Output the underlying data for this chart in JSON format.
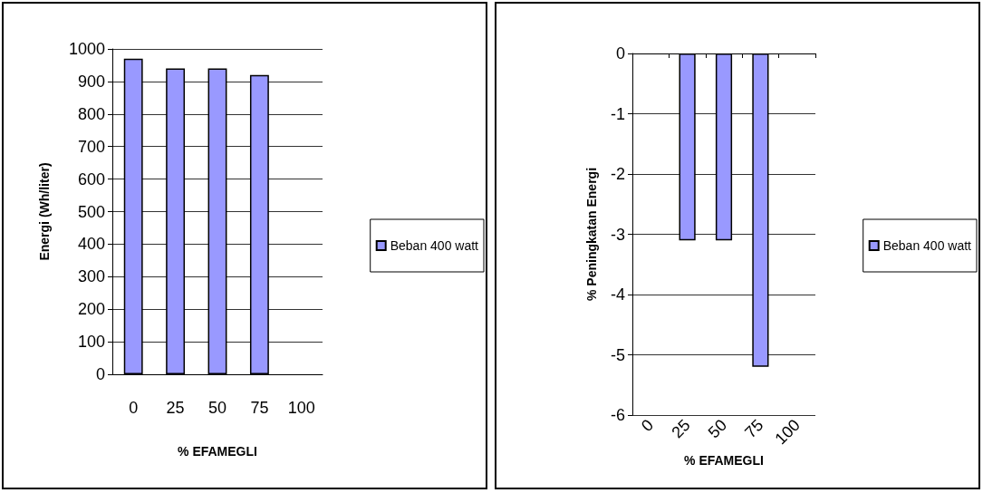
{
  "chart_data": [
    {
      "type": "bar",
      "xlabel": "% EFAMEGLI",
      "ylabel": "Energi (Wh/liter)",
      "categories": [
        "0",
        "25",
        "50",
        "75",
        "100"
      ],
      "series": [
        {
          "name": "Beban 400 watt",
          "color": "#9999ff",
          "values": [
            970,
            940,
            940,
            920,
            null
          ]
        }
      ],
      "ylim": [
        0,
        1000
      ],
      "yticks": [
        0,
        100,
        200,
        300,
        400,
        500,
        600,
        700,
        800,
        900,
        1000
      ],
      "grid": "y",
      "legend": "right"
    },
    {
      "type": "bar",
      "xlabel": "% EFAMEGLI",
      "ylabel": "% Peningkatan Energi",
      "categories": [
        "0",
        "25",
        "50",
        "75",
        "100"
      ],
      "series": [
        {
          "name": "Beban 400 watt",
          "color": "#9999ff",
          "values": [
            null,
            -3.1,
            -3.1,
            -5.2,
            null
          ]
        }
      ],
      "ylim": [
        -6,
        0
      ],
      "yticks": [
        -6,
        -5,
        -4,
        -3,
        -2,
        -1,
        0
      ],
      "grid": "y",
      "legend": "right"
    }
  ]
}
